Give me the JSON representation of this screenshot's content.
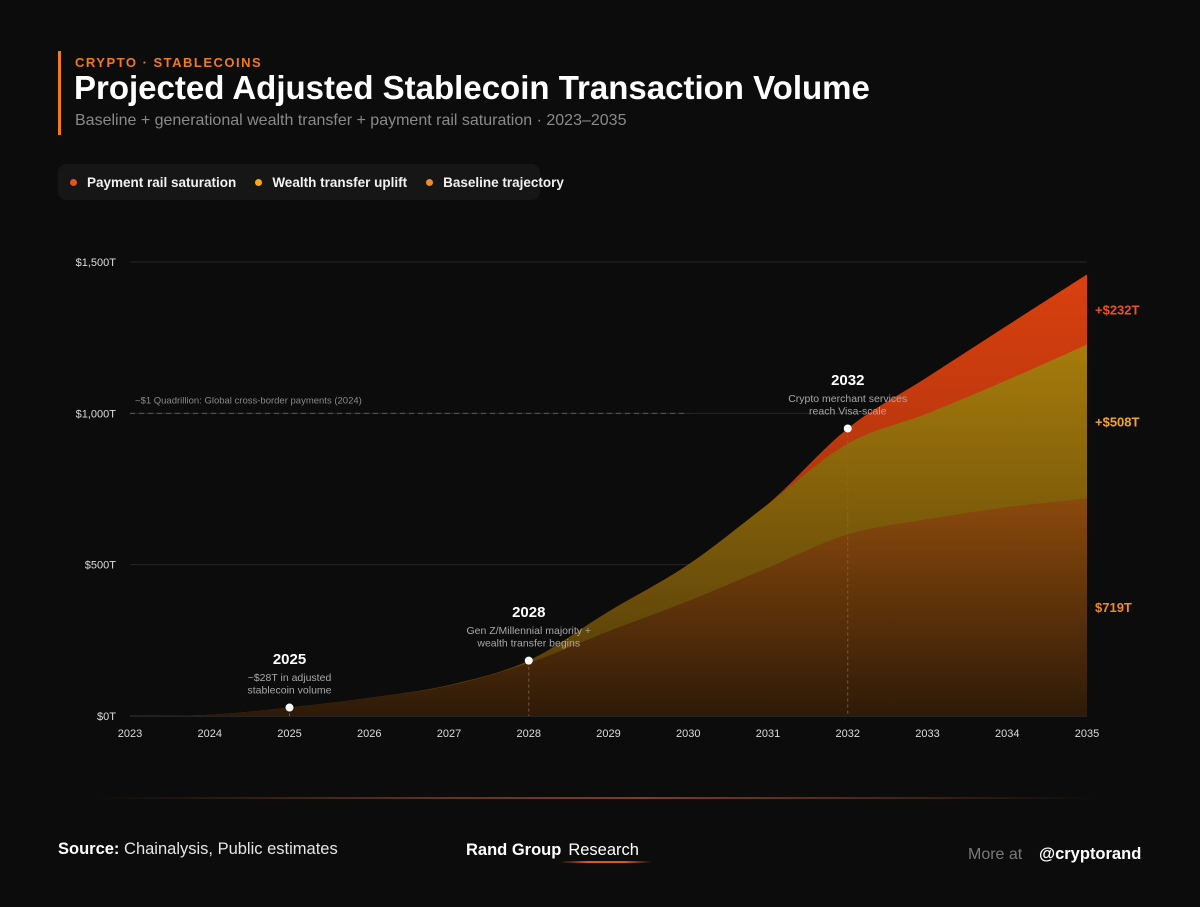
{
  "header": {
    "eyebrow": "CRYPTO · STABLECOINS",
    "title": "Projected Adjusted Stablecoin Transaction Volume",
    "subtitle": "Baseline + generational wealth transfer + payment rail saturation · 2023–2035"
  },
  "colors": {
    "accent": "#f07a1c",
    "payment": "#e04d18",
    "wealth": "#f5a623",
    "baseline": "#f08a24"
  },
  "legend": [
    {
      "label": "Payment rail saturation",
      "color": "#e9531b"
    },
    {
      "label": "Wealth transfer uplift",
      "color": "#f6a91f"
    },
    {
      "label": "Baseline trajectory",
      "color": "#f08a24"
    }
  ],
  "chart_data": {
    "type": "area",
    "stacked": true,
    "x": [
      2023,
      2024,
      2025,
      2026,
      2027,
      2028,
      2029,
      2030,
      2031,
      2032,
      2033,
      2034,
      2035
    ],
    "series": [
      {
        "name": "Baseline trajectory",
        "values": [
          0,
          4,
          28,
          60,
          100,
          175,
          280,
          380,
          490,
          600,
          650,
          690,
          719
        ]
      },
      {
        "name": "Wealth transfer uplift",
        "values": [
          0,
          0,
          0,
          0,
          2,
          8,
          65,
          120,
          210,
          300,
          350,
          420,
          508
        ]
      },
      {
        "name": "Payment rail saturation",
        "values": [
          0,
          0,
          0,
          0,
          0,
          0,
          0,
          0,
          0,
          50,
          120,
          180,
          232
        ]
      }
    ],
    "ylim": [
      0,
      1500
    ],
    "y_ticks": [
      0,
      500,
      1000,
      1500
    ],
    "y_tick_labels": [
      "$0T",
      "$500T",
      "$1,000T",
      "$1,500T"
    ],
    "x_tick_labels": [
      "2023",
      "2024",
      "2025",
      "2026",
      "2027",
      "2028",
      "2029",
      "2030",
      "2031",
      "2032",
      "2033",
      "2034",
      "2035"
    ],
    "reference_line": {
      "value": 1000,
      "x_start": 2023,
      "x_end": 2030,
      "label": "~$1 Quadrillion: Global cross-border payments (2024)"
    },
    "annotations": [
      {
        "year": 2025,
        "value": 28,
        "label_year": "2025",
        "lines": [
          "~$28T in adjusted",
          "stablecoin volume"
        ]
      },
      {
        "year": 2028,
        "value": 183,
        "label_year": "2028",
        "lines": [
          "Gen Z/Millennial majority +",
          "wealth transfer begins"
        ]
      },
      {
        "year": 2032,
        "value": 950,
        "label_year": "2032",
        "lines": [
          "Crypto merchant services",
          "reach Visa-scale"
        ]
      }
    ],
    "end_labels": [
      {
        "text": "+$232T",
        "color": "#f0501e",
        "series": "Payment rail saturation"
      },
      {
        "text": "+$508T",
        "color": "#f5a623",
        "series": "Wealth transfer uplift"
      },
      {
        "text": "$719T",
        "color": "#f08a24",
        "series": "Baseline trajectory"
      }
    ]
  },
  "footer": {
    "source_label": "Source:",
    "source_text": "Chainalysis, Public estimates",
    "brand_name": "Rand Group",
    "brand_sub": "Research",
    "more_label": "More at",
    "handle": "@cryptorand"
  }
}
